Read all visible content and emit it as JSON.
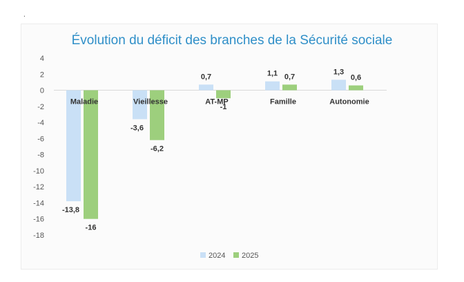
{
  "mark": ".",
  "chart_data": {
    "type": "bar",
    "title": "Évolution du déficit des branches de la Sécurité sociale",
    "xlabel": "",
    "ylabel": "",
    "categories": [
      "Maladie",
      "Vieillesse",
      "AT-MP",
      "Famille",
      "Autonomie"
    ],
    "series": [
      {
        "name": "2024",
        "color": "#c9e0f6",
        "values": [
          -13.8,
          -3.6,
          0.7,
          1.1,
          1.3
        ],
        "labels": [
          "-13,8",
          "-3,6",
          "0,7",
          "1,1",
          "1,3"
        ]
      },
      {
        "name": "2025",
        "color": "#9dcf7d",
        "values": [
          -16,
          -6.2,
          -1,
          0.7,
          0.6
        ],
        "labels": [
          "-16",
          "-6,2",
          "-1",
          "0,7",
          "0,6"
        ]
      }
    ],
    "ylim": [
      -18,
      4
    ],
    "yticks": [
      4,
      2,
      0,
      -2,
      -4,
      -6,
      -8,
      -10,
      -12,
      -14,
      -16,
      -18
    ],
    "grid": false,
    "legend": "bottom"
  }
}
